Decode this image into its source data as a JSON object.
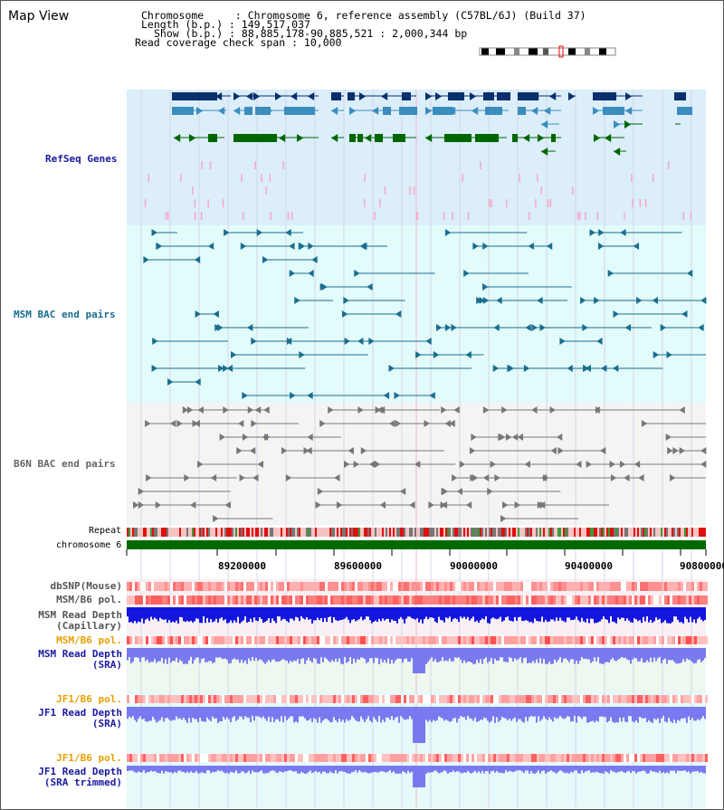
{
  "header": {
    "title": "Map View",
    "chromosome_line": "Chromosome     : Chromosome 6, reference assembly (C57BL/6J) (Build 37)",
    "length_line": "Length (b.p.) : 149,517,037",
    "show_line": "Show (b.p.) : 88,885,178-90,885,521 : 2,000,344 bp",
    "span_line": "Read coverage check span : 10,000"
  },
  "tracks": {
    "refseq": "RefSeq Genes",
    "msm_bac": "MSM BAC end pairs",
    "b6n_bac": "B6N BAC end pairs",
    "repeat": "Repeat",
    "chromosome": "chromosome 6",
    "dbsnp": "dbSNP(Mouse)",
    "msm_b6_pol": "MSM/B6 pol.",
    "msm_depth_cap_1": "MSM Read Depth",
    "msm_depth_cap_2": "(Capillary)",
    "msm_b6_pol_2": "MSM/B6 pol.",
    "msm_depth_sra_1": "MSM Read Depth",
    "msm_depth_sra_2": "(SRA)",
    "jf1_b6_pol": "JF1/B6 pol.",
    "jf1_depth_sra_1": "JF1 Read Depth",
    "jf1_depth_sra_2": "(SRA)",
    "jf1_b6_pol_2": "JF1/B6 pol.",
    "jf1_depth_trim_1": "JF1 Read Depth",
    "jf1_depth_trim_2": "(SRA trimmed)"
  },
  "axis": {
    "ticks": [
      "89200000",
      "89600000",
      "90000000",
      "90400000",
      "90800000"
    ]
  },
  "colors": {
    "refseq_bg": "#dbeefa",
    "msm_bg": "#e2fbfb",
    "b6n_bg": "#f4f4f4",
    "gene_dark": "#0a2f6e",
    "gene_mid": "#3b8dbd",
    "gene_green": "#006600",
    "gene_pink": "#f7a8c8",
    "msm_line": "#1a6e8e",
    "b6n_line": "#777777",
    "chrom_green": "#006a00",
    "depth_blue": "#1515e0",
    "depth_light": "#7a7af0"
  }
}
